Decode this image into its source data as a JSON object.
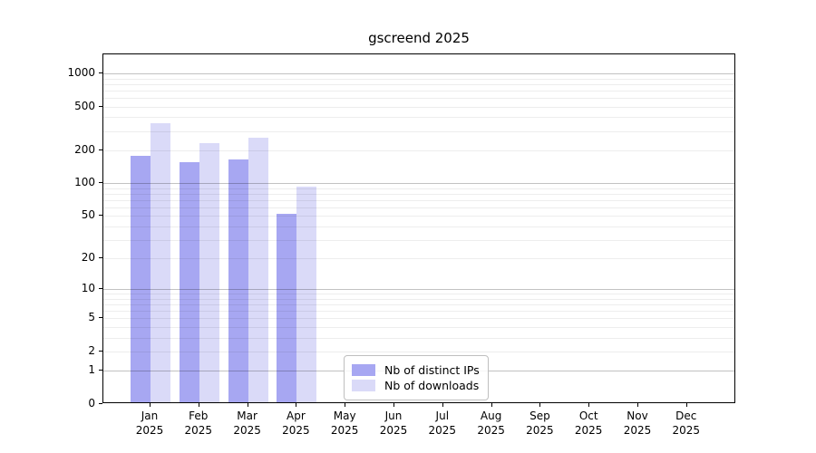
{
  "chart_data": {
    "type": "bar",
    "title": "gscreend 2025",
    "categories": [
      "Jan",
      "Feb",
      "Mar",
      "Apr",
      "May",
      "Jun",
      "Jul",
      "Aug",
      "Sep",
      "Oct",
      "Nov",
      "Dec"
    ],
    "category_year": "2025",
    "series": [
      {
        "name": "Nb of distinct IPs",
        "color": "#a7a7f2",
        "values": [
          170,
          150,
          160,
          50,
          null,
          null,
          null,
          null,
          null,
          null,
          null,
          null
        ]
      },
      {
        "name": "Nb of downloads",
        "color": "#dadaf8",
        "values": [
          340,
          225,
          250,
          90,
          null,
          null,
          null,
          null,
          null,
          null,
          null,
          null
        ]
      }
    ],
    "xlabel": "",
    "ylabel": "",
    "y_scale": "log1p",
    "y_ticks": [
      0,
      1,
      2,
      5,
      10,
      20,
      50,
      100,
      200,
      500,
      1000
    ],
    "y_major_gridlines": [
      1,
      10,
      100,
      1000
    ],
    "y_minor_grid_subs": [
      2,
      3,
      4,
      5,
      6,
      7,
      8,
      9
    ],
    "ylim": [
      0,
      1490
    ],
    "grid": "both",
    "legend_position": "inside-lower-center"
  }
}
